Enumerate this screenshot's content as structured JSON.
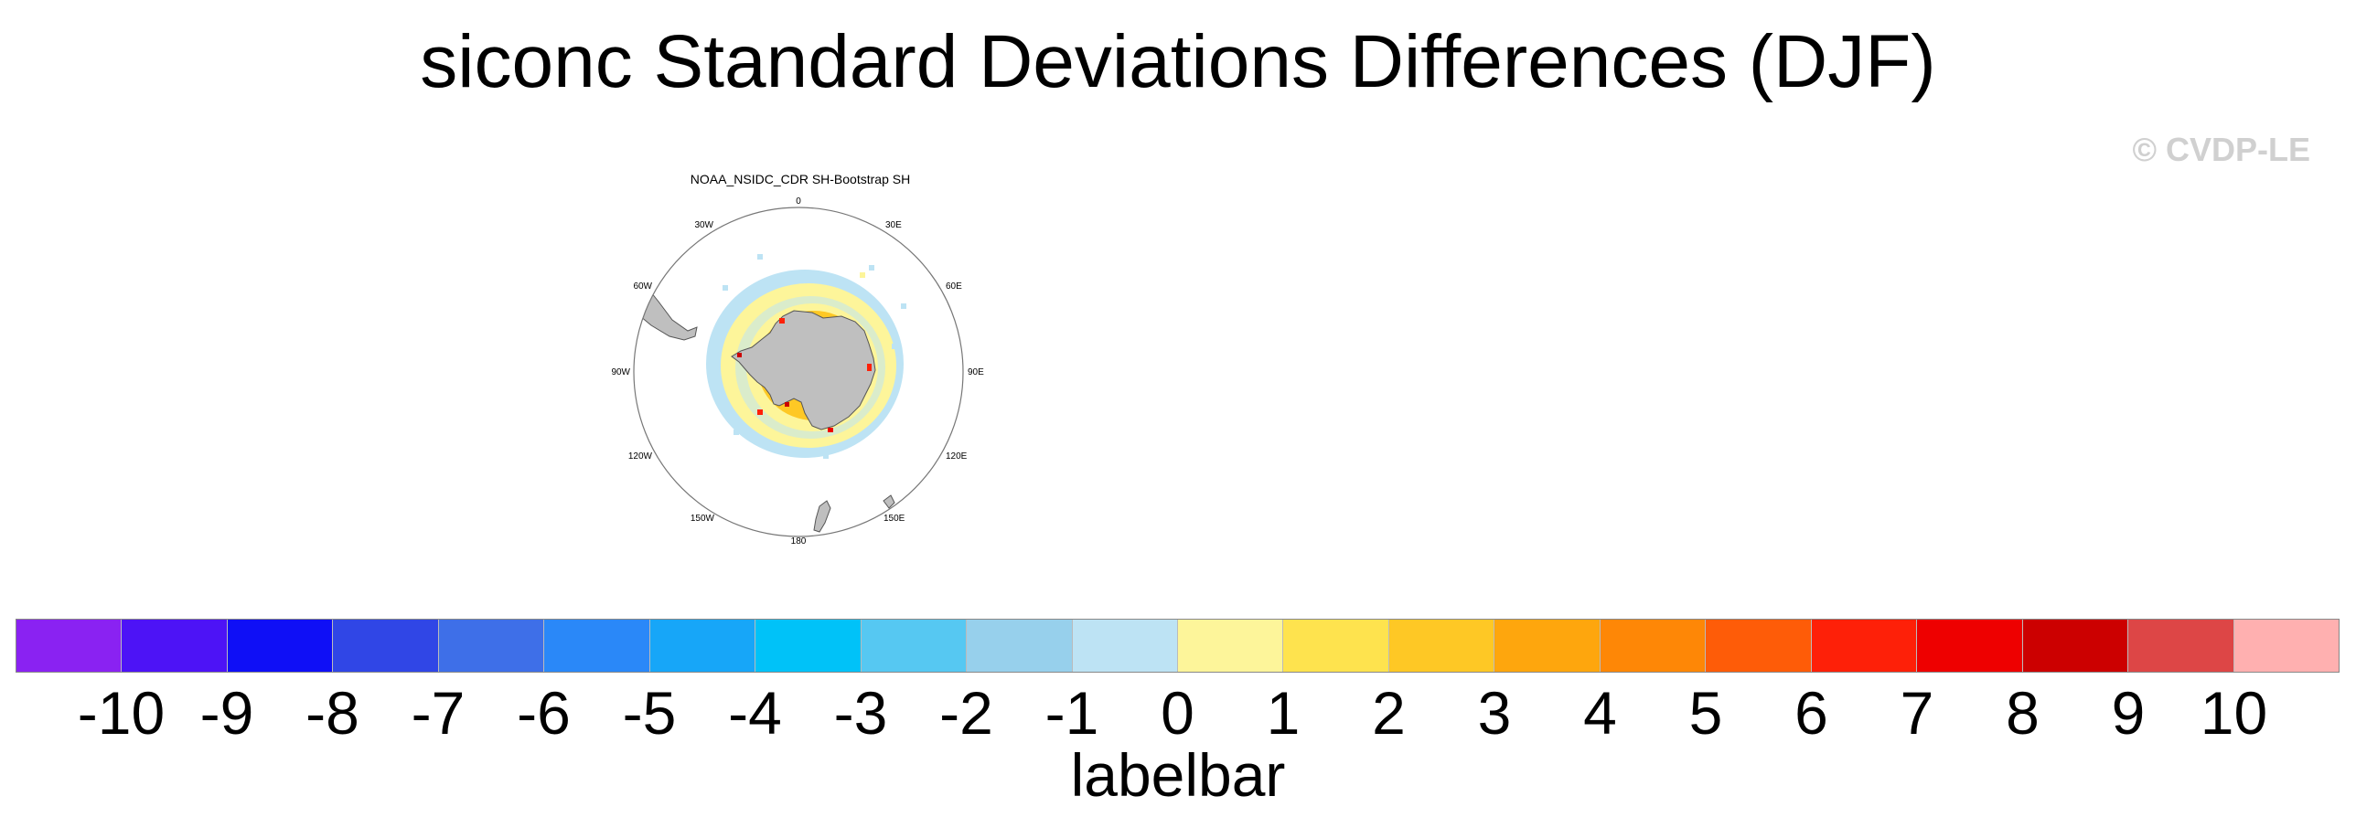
{
  "title": "siconc Standard Deviations Differences (DJF)",
  "watermark": "© CVDP-LE",
  "panel": {
    "title": "NOAA_NSIDC_CDR SH-Bootstrap SH",
    "projection": "south-polar-stereographic",
    "longitude_labels": [
      "0",
      "30E",
      "60E",
      "90E",
      "120E",
      "150E",
      "180",
      "150W",
      "120W",
      "90W",
      "60W",
      "30W"
    ]
  },
  "labelbar": {
    "label": "labelbar",
    "tick_labels": [
      "-10",
      "-9",
      "-8",
      "-7",
      "-6",
      "-5",
      "-4",
      "-3",
      "-2",
      "-1",
      "0",
      "1",
      "2",
      "3",
      "4",
      "5",
      "6",
      "7",
      "8",
      "9",
      "10"
    ],
    "colors": [
      "#8a22f2",
      "#4d13f6",
      "#0f0ff6",
      "#3046e6",
      "#3e6fe8",
      "#2a88f8",
      "#17a6f8",
      "#00c2f8",
      "#56c8f2",
      "#97d0ec",
      "#bde3f4",
      "#fdf59a",
      "#fee34e",
      "#fec825",
      "#fea60d",
      "#fe8706",
      "#fe5c08",
      "#fe2008",
      "#ee0000",
      "#cc0000",
      "#dd4646",
      "#ffb0b0"
    ]
  },
  "colors": {
    "land": "#bfbfbf",
    "missing": "#ffffff"
  }
}
